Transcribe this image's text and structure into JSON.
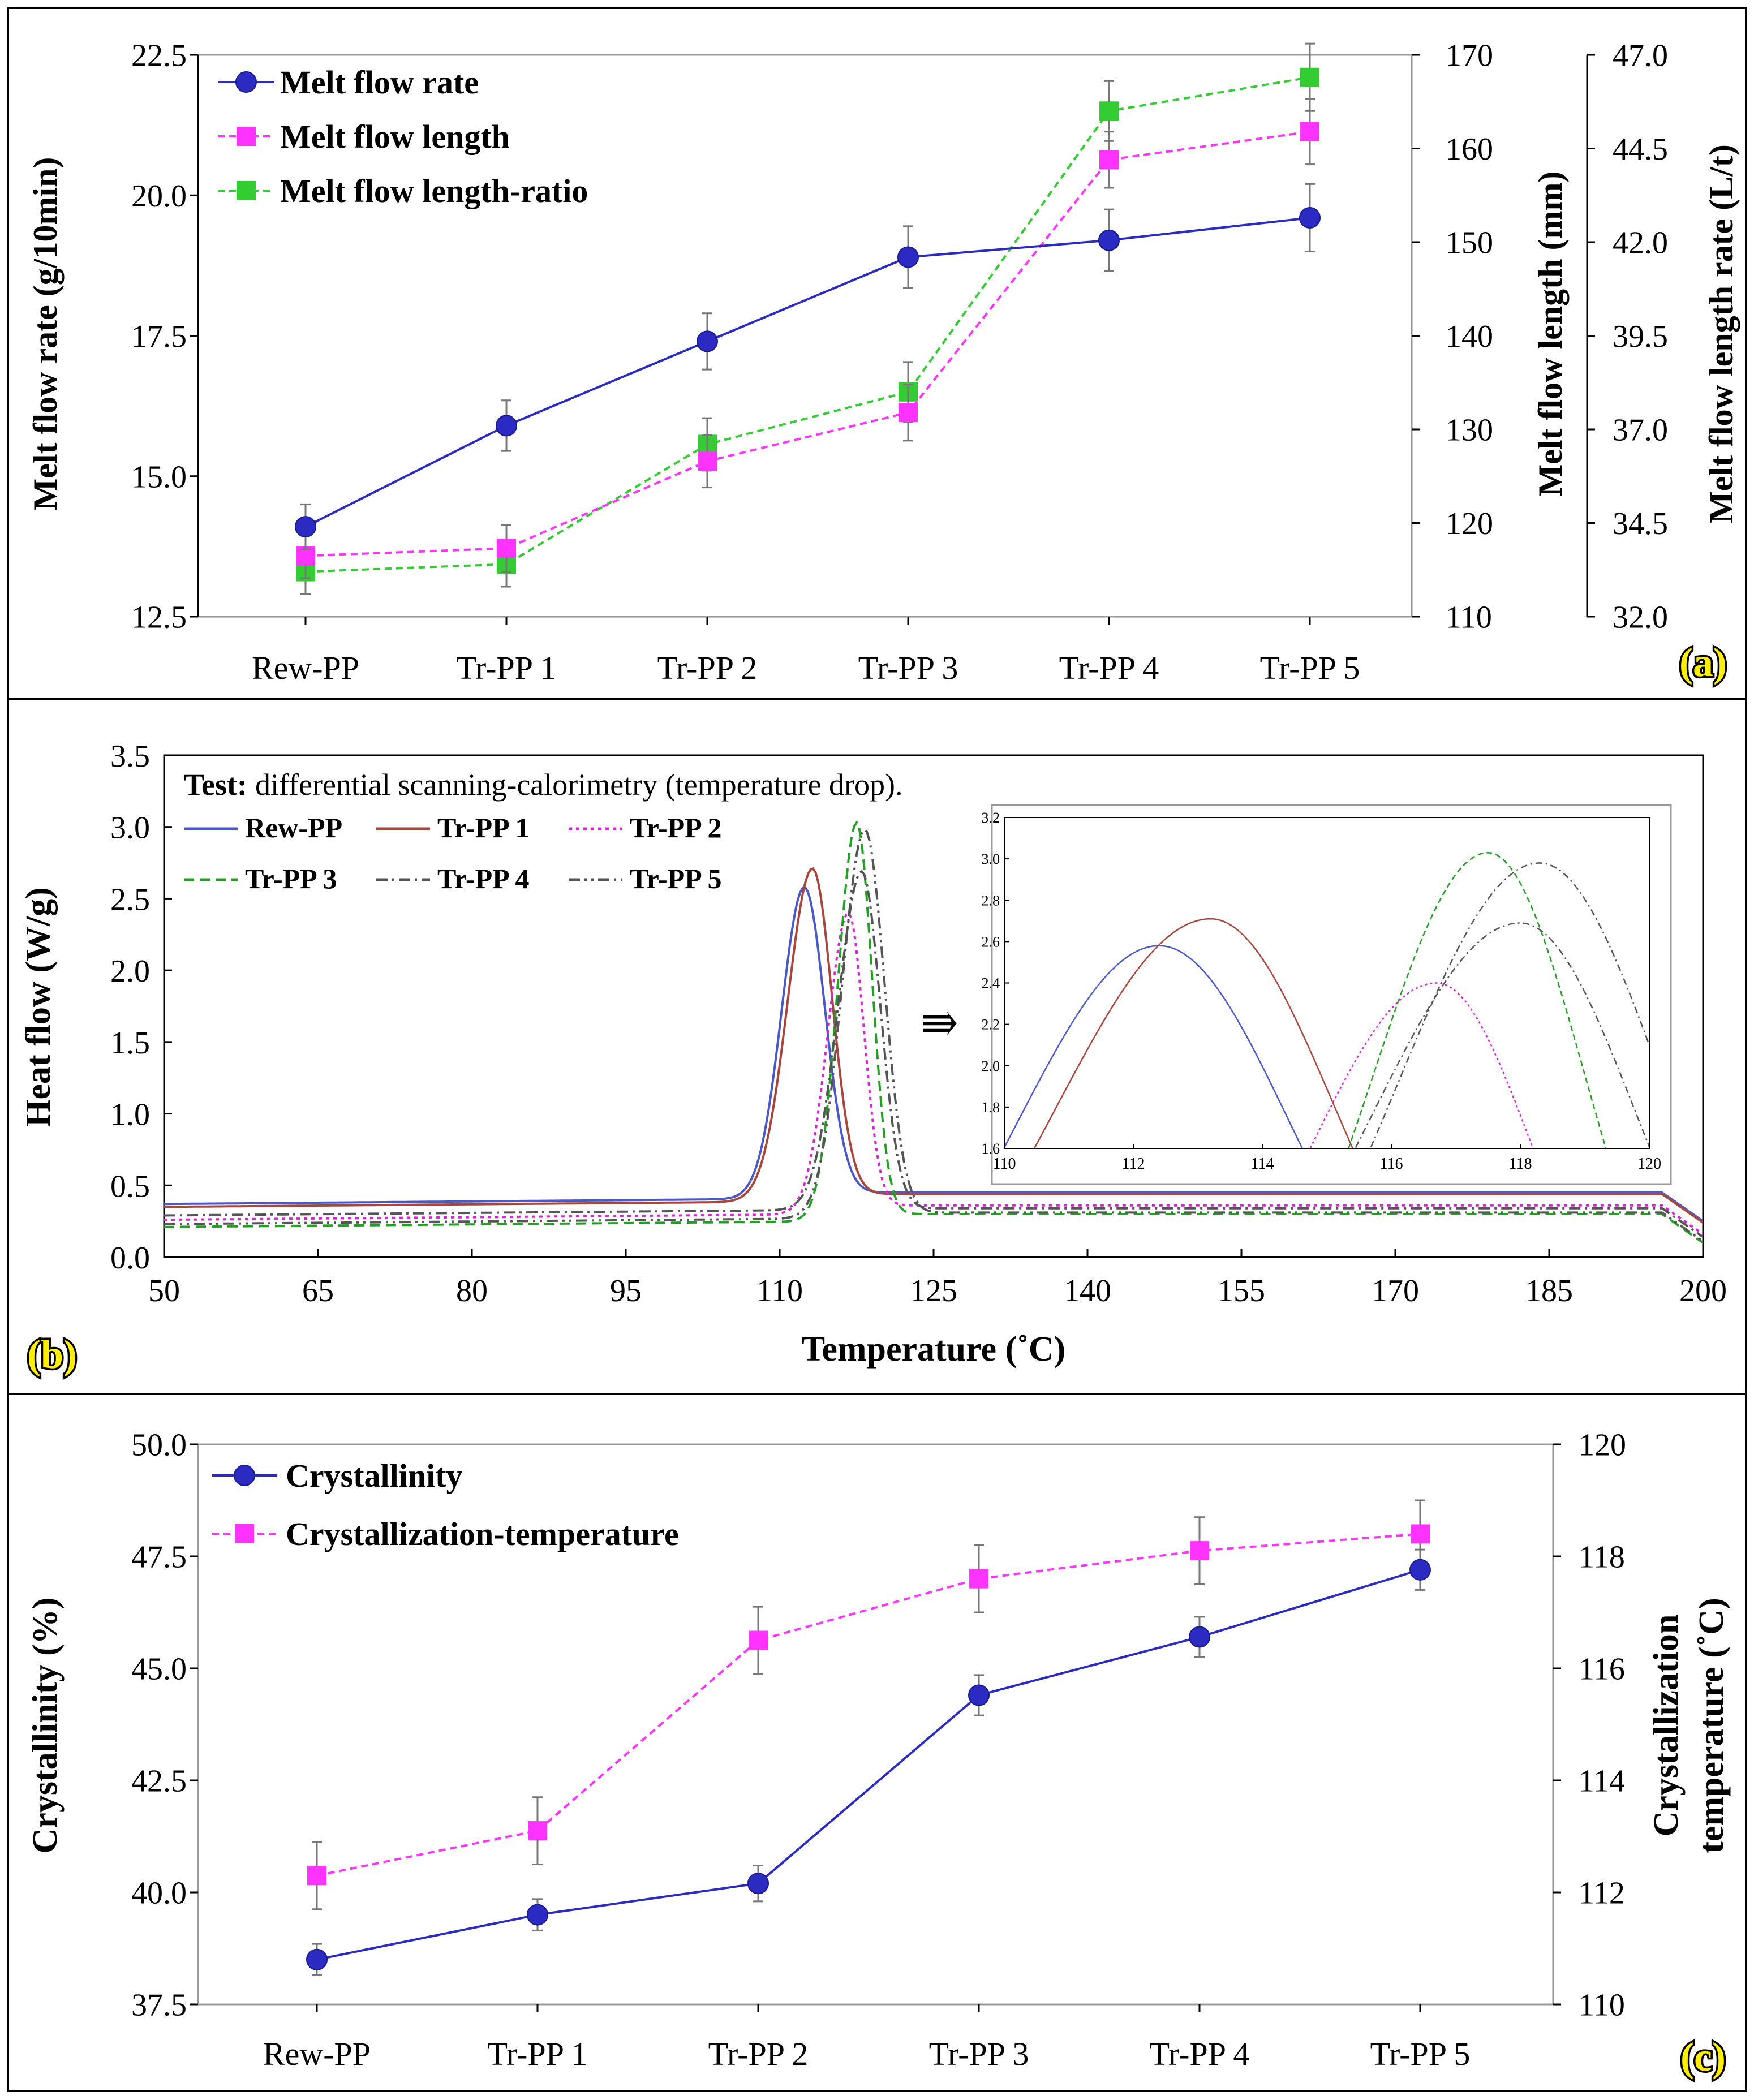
{
  "chart_data": [
    {
      "panel": "(a)",
      "type": "line",
      "categories": [
        "Rew-PP",
        "Tr-PP 1",
        "Tr-PP 2",
        "Tr-PP 3",
        "Tr-PP 4",
        "Tr-PP 5"
      ],
      "ylabel": "Melt flow rate (g/10min)",
      "y2label": "Melt flow length (mm)",
      "y3label": "Melt flow length rate (L/t)",
      "ylim": [
        12.5,
        22.5
      ],
      "y2lim": [
        110,
        170
      ],
      "y3lim": [
        32.0,
        47.0
      ],
      "yticks": [
        "12.5",
        "15.0",
        "17.5",
        "20.0",
        "22.5"
      ],
      "y2ticks": [
        "110",
        "120",
        "130",
        "140",
        "150",
        "160",
        "170"
      ],
      "y3ticks": [
        "32.0",
        "34.5",
        "37.0",
        "39.5",
        "42.0",
        "44.5",
        "47.0"
      ],
      "series": [
        {
          "name": "Melt flow rate",
          "axis": "left",
          "color": "#2b2bc4",
          "marker": "circle",
          "style": "solid",
          "values": [
            14.1,
            15.9,
            17.4,
            18.9,
            19.2,
            19.6
          ],
          "err": [
            0.4,
            0.45,
            0.5,
            0.55,
            0.55,
            0.6
          ]
        },
        {
          "name": "Melt flow length",
          "axis": "right",
          "color": "#ff33ff",
          "marker": "square",
          "style": "dashed",
          "values": [
            116.5,
            117.3,
            126.6,
            131.8,
            158.8,
            161.8
          ],
          "err": [
            2.4,
            2.5,
            2.8,
            3.0,
            3.0,
            3.5
          ]
        },
        {
          "name": "Melt flow length-ratio",
          "axis": "right2",
          "color": "#33cc33",
          "marker": "square",
          "style": "dashed",
          "values": [
            33.2,
            33.4,
            36.6,
            38.0,
            45.5,
            46.4
          ],
          "err": [
            0.6,
            0.6,
            0.7,
            0.8,
            0.8,
            0.9
          ]
        }
      ],
      "label": "(a)"
    },
    {
      "panel": "(b)",
      "type": "line",
      "title_bold": "Test:",
      "title": "differential scanning-calorimetry (temperature drop).",
      "xlabel": "Temperature (˚C)",
      "ylabel": "Heat flow (W/g)",
      "xlim": [
        50,
        200
      ],
      "ylim": [
        0,
        3.5
      ],
      "xticks": [
        "50",
        "65",
        "80",
        "95",
        "110",
        "125",
        "140",
        "155",
        "170",
        "185",
        "200"
      ],
      "yticks": [
        "0.0",
        "0.5",
        "1.0",
        "1.5",
        "2.0",
        "2.5",
        "3.0",
        "3.5"
      ],
      "series": [
        {
          "name": "Rew-PP",
          "color": "#4a58c8",
          "style": "solid",
          "peak_x": 112.4,
          "peak_y": 2.58,
          "base_left": 0.37,
          "base_right": 0.45,
          "sigma_left": 2.2,
          "sigma_right": 2.0
        },
        {
          "name": "Tr-PP 1",
          "color": "#a8463c",
          "style": "solid",
          "peak_x": 113.2,
          "peak_y": 2.71,
          "base_left": 0.35,
          "base_right": 0.44,
          "sigma_left": 2.4,
          "sigma_right": 1.9
        },
        {
          "name": "Tr-PP 2",
          "color": "#dd22dd",
          "style": "dotted",
          "peak_x": 116.7,
          "peak_y": 2.4,
          "base_left": 0.26,
          "base_right": 0.36,
          "sigma_left": 2.0,
          "sigma_right": 1.5
        },
        {
          "name": "Tr-PP 3",
          "color": "#22a022",
          "style": "dashed",
          "peak_x": 117.5,
          "peak_y": 3.03,
          "base_left": 0.21,
          "base_right": 0.3,
          "sigma_left": 1.8,
          "sigma_right": 1.5
        },
        {
          "name": "Tr-PP 4",
          "color": "#555555",
          "style": "dashdot",
          "peak_x": 118.0,
          "peak_y": 2.69,
          "base_left": 0.29,
          "base_right": 0.34,
          "sigma_left": 2.3,
          "sigma_right": 1.8
        },
        {
          "name": "Tr-PP 5",
          "color": "#555555",
          "style": "dashdotdot",
          "peak_x": 118.3,
          "peak_y": 2.98,
          "base_left": 0.23,
          "base_right": 0.31,
          "sigma_left": 2.2,
          "sigma_right": 1.9
        }
      ],
      "inset": {
        "xlim": [
          110,
          120
        ],
        "ylim": [
          1.6,
          3.2
        ],
        "xticks": [
          "110",
          "112",
          "114",
          "116",
          "118",
          "120"
        ],
        "yticks": [
          "1.6",
          "1.8",
          "2.0",
          "2.2",
          "2.4",
          "2.6",
          "2.8",
          "3.0",
          "3.2"
        ],
        "arrow": "⇛"
      },
      "label": "(b)"
    },
    {
      "panel": "(c)",
      "type": "line",
      "categories": [
        "Rew-PP",
        "Tr-PP 1",
        "Tr-PP 2",
        "Tr-PP 3",
        "Tr-PP 4",
        "Tr-PP 5"
      ],
      "ylabel": "Crystallinity (%)",
      "y2label_line1": "Crystallization",
      "y2label_line2": "temperature (˚C)",
      "ylim": [
        37.5,
        50.0
      ],
      "y2lim": [
        110,
        120
      ],
      "yticks": [
        "37.5",
        "40.0",
        "42.5",
        "45.0",
        "47.5",
        "50.0"
      ],
      "y2ticks": [
        "110",
        "112",
        "114",
        "116",
        "118",
        "120"
      ],
      "series": [
        {
          "name": "Crystallinity",
          "axis": "left",
          "color": "#2b2bc4",
          "marker": "circle",
          "style": "solid",
          "values": [
            38.5,
            39.5,
            40.2,
            44.4,
            45.7,
            47.2
          ],
          "err": [
            0.35,
            0.35,
            0.4,
            0.45,
            0.45,
            0.45
          ]
        },
        {
          "name": "Crystallization-temperature",
          "axis": "right",
          "color": "#ff33ff",
          "marker": "square",
          "style": "dashed",
          "values": [
            112.3,
            113.1,
            116.5,
            117.6,
            118.1,
            118.4
          ],
          "err": [
            0.6,
            0.6,
            0.6,
            0.6,
            0.6,
            0.6
          ]
        }
      ],
      "label": "(c)"
    }
  ]
}
